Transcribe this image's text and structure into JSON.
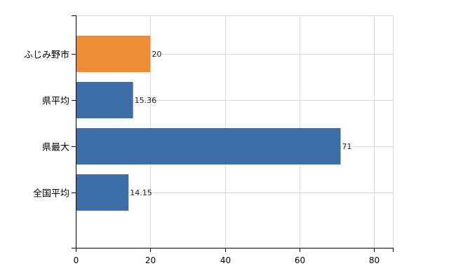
{
  "chart_data": {
    "type": "bar",
    "orientation": "horizontal",
    "categories": [
      "ふじみ野市",
      "県平均",
      "県最大",
      "全国平均"
    ],
    "values": [
      20,
      15.36,
      71,
      14.15
    ],
    "data_labels": [
      "20",
      "15.36",
      "71",
      "14.15"
    ],
    "bar_colors": [
      "#ef8c35",
      "#3d6ea8",
      "#3d6ea8",
      "#3d6ea8"
    ],
    "xlim": [
      0,
      85
    ],
    "xticks": [
      0,
      20,
      40,
      60,
      80
    ],
    "title": "",
    "xlabel": "",
    "ylabel": "",
    "grid": true,
    "legend": "none"
  },
  "colors": {
    "highlight": "#ef8c35",
    "default_bar": "#3d6ea8",
    "grid": "#d9d9d9",
    "axis": "#000000"
  }
}
